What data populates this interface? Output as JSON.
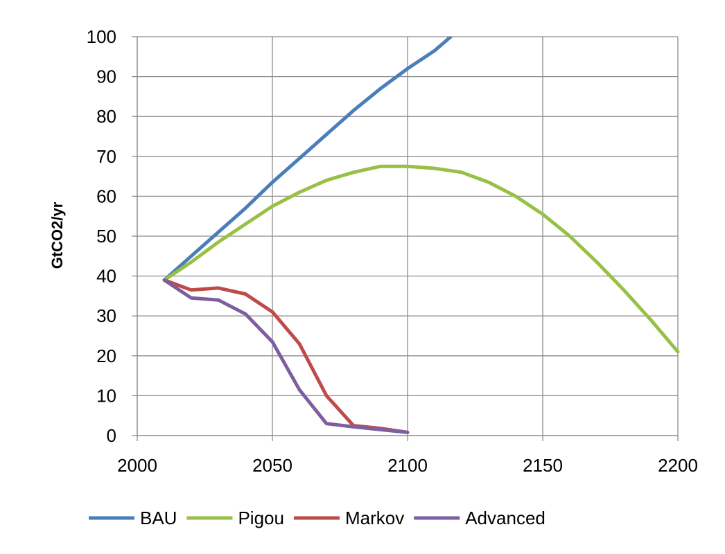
{
  "chart_data": {
    "type": "line",
    "title": "",
    "xlabel": "",
    "ylabel": "GtCO2/yr",
    "xlim": [
      2000,
      2200
    ],
    "ylim": [
      0,
      100
    ],
    "xticks": [
      2000,
      2050,
      2100,
      2150,
      2200
    ],
    "yticks": [
      0,
      10,
      20,
      30,
      40,
      50,
      60,
      70,
      80,
      90,
      100
    ],
    "grid": true,
    "legend_position": "bottom",
    "series": [
      {
        "name": "BAU",
        "color": "#4a7ebb",
        "x": [
          2010,
          2020,
          2030,
          2040,
          2050,
          2060,
          2070,
          2080,
          2090,
          2100,
          2110,
          2116
        ],
        "y": [
          39,
          45,
          51,
          57,
          63.5,
          69.5,
          75.5,
          81.5,
          87,
          92,
          96.5,
          100
        ]
      },
      {
        "name": "Pigou",
        "color": "#98c046",
        "x": [
          2010,
          2020,
          2030,
          2040,
          2050,
          2060,
          2070,
          2080,
          2090,
          2100,
          2110,
          2120,
          2130,
          2140,
          2150,
          2160,
          2170,
          2180,
          2190,
          2200
        ],
        "y": [
          39,
          43.5,
          48.5,
          53,
          57.5,
          61,
          64,
          66,
          67.5,
          67.5,
          67,
          66,
          63.5,
          60,
          55.5,
          50,
          43.5,
          36.5,
          29,
          21
        ]
      },
      {
        "name": "Markov",
        "color": "#be4b48",
        "x": [
          2010,
          2020,
          2030,
          2040,
          2050,
          2060,
          2070,
          2080,
          2090,
          2100
        ],
        "y": [
          39,
          36.5,
          37,
          35.5,
          31,
          23,
          10,
          2.5,
          1.8,
          0.8
        ]
      },
      {
        "name": "Advanced",
        "color": "#7d5fa0",
        "x": [
          2010,
          2020,
          2030,
          2040,
          2050,
          2060,
          2070,
          2080,
          2090,
          2100
        ],
        "y": [
          39,
          34.5,
          34,
          30.5,
          23.5,
          11.5,
          3,
          2.2,
          1.5,
          0.8
        ]
      }
    ]
  }
}
